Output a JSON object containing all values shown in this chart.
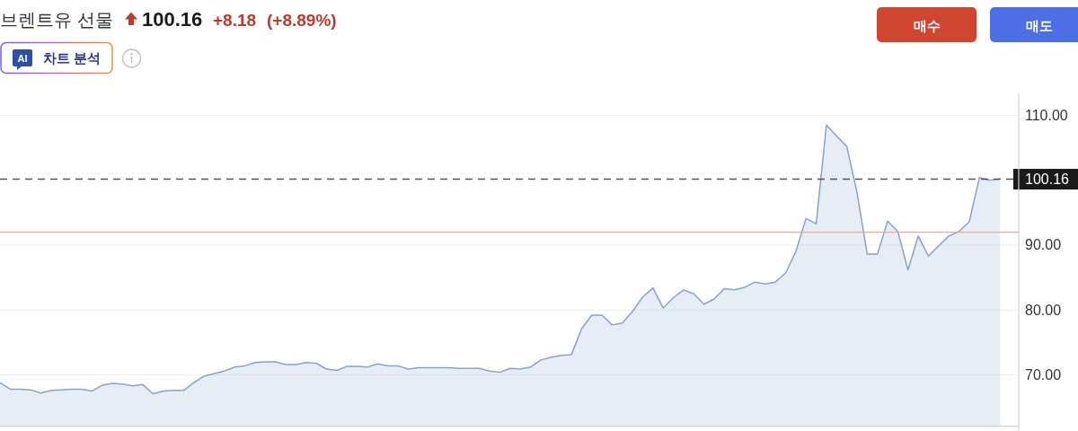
{
  "chart_data": {
    "type": "area",
    "title": "브렌트유 선물",
    "annotations": [
      "100.16",
      "+8.18",
      "(+8.89%)",
      "AI",
      "차트 분석",
      "매수",
      "매도"
    ],
    "categories": [
      null,
      null,
      null,
      null,
      null,
      null,
      null,
      null,
      null,
      null,
      null,
      null,
      null,
      null,
      null,
      null,
      null,
      null,
      null,
      null,
      null,
      null,
      null,
      null,
      null,
      null,
      null,
      null,
      null,
      null,
      null,
      null,
      null,
      null,
      null,
      null,
      null,
      null,
      null,
      null,
      null,
      null,
      null,
      null,
      null,
      null,
      null,
      null,
      null,
      null,
      null,
      null,
      null,
      null,
      null,
      null,
      null,
      null,
      null,
      null,
      null,
      null,
      null,
      null,
      null,
      null,
      null,
      null,
      null,
      null,
      null,
      null,
      null,
      null,
      null,
      null,
      null,
      null,
      null,
      null,
      null,
      null,
      null,
      null,
      null,
      null,
      null,
      null,
      null,
      null,
      null,
      null,
      null,
      null,
      null,
      null,
      null,
      null,
      null
    ],
    "series": [
      {
        "color": "#87a3c9",
        "values": [
          68.8,
          67.8,
          67.8,
          67.7,
          67.2,
          67.6,
          67.7,
          67.8,
          67.8,
          67.5,
          68.4,
          68.7,
          68.6,
          68.3,
          68.5,
          67.1,
          67.5,
          67.6,
          67.6,
          68.8,
          69.8,
          70.2,
          70.6,
          71.2,
          71.4,
          71.9,
          72.0,
          72.0,
          71.6,
          71.6,
          71.9,
          71.8,
          70.9,
          70.7,
          71.3,
          71.3,
          71.2,
          71.7,
          71.4,
          71.4,
          70.9,
          71.1,
          71.1,
          71.1,
          71.1,
          71.0,
          71.0,
          71.0,
          70.6,
          70.4,
          71.0,
          70.9,
          71.2,
          72.3,
          72.7,
          73.0,
          73.1,
          77.1,
          79.2,
          79.2,
          77.7,
          78.0,
          79.8,
          82.0,
          83.4,
          80.3,
          81.9,
          83.1,
          82.5,
          80.9,
          81.7,
          83.3,
          83.1,
          83.5,
          84.3,
          84.0,
          84.3,
          85.7,
          89.0,
          94.1,
          93.3,
          108.5,
          106.8,
          105.2,
          98.1,
          88.6,
          88.6,
          93.7,
          92.1,
          86.2,
          91.4,
          88.3,
          89.9,
          91.4,
          92.1,
          93.6,
          100.4,
          100.0,
          100.2
        ]
      }
    ],
    "ylim": [
      62.1,
      113.3
    ],
    "yticks": [
      {
        "value": 70,
        "label": "70.00"
      },
      {
        "value": 80,
        "label": "80.00"
      },
      {
        "value": 90,
        "label": "90.00"
      },
      {
        "value": 110,
        "label": "110.00"
      }
    ],
    "ref_lines": [
      {
        "axis": "y",
        "value": 100.16,
        "label": "100.16",
        "color": "#555555",
        "line_style": "dashed"
      },
      {
        "axis": "y",
        "value": 91.98,
        "color": "#f2a5a5",
        "line_style": "solid"
      }
    ],
    "grid": "y",
    "tick_labels": "y",
    "line_style": "solid"
  }
}
